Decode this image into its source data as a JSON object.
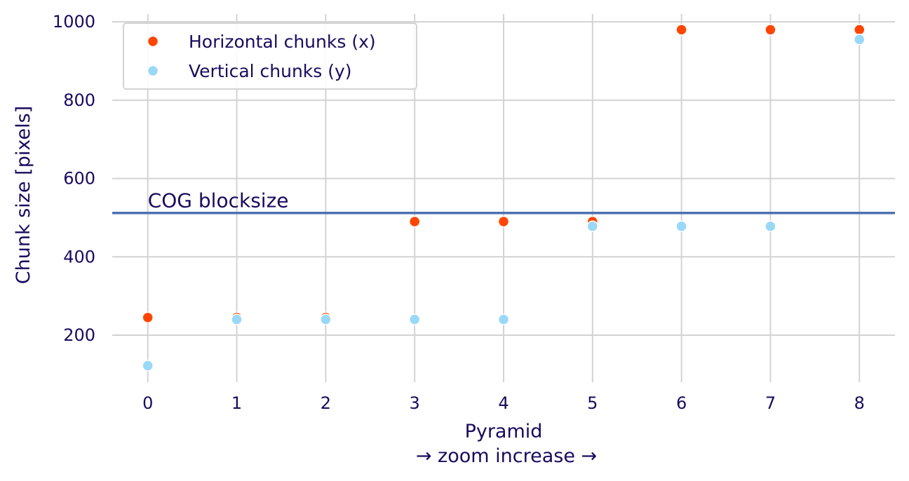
{
  "chart_data": {
    "type": "scatter",
    "x": [
      0,
      1,
      2,
      3,
      4,
      5,
      6,
      7,
      8
    ],
    "series": [
      {
        "name": "Horizontal chunks (x)",
        "color": "#ff4500",
        "values": [
          245,
          245,
          245,
          490,
          490,
          490,
          980,
          980,
          980
        ]
      },
      {
        "name": "Vertical chunks (y)",
        "color": "#9ad8f7",
        "values": [
          122,
          240,
          240,
          240,
          240,
          478,
          478,
          478,
          955
        ]
      }
    ],
    "reference_line": {
      "value": 512,
      "label": "COG blocksize",
      "color": "#4c72b0"
    },
    "xlabel": "Pyramid",
    "xlabel_line2": "→ zoom increase →",
    "ylabel": "Chunk size [pixels]",
    "xticks": [
      "0",
      "1",
      "2",
      "3",
      "4",
      "5",
      "6",
      "7",
      "8"
    ],
    "yticks": [
      200,
      400,
      600,
      800,
      1000
    ],
    "xlim": [
      -0.4,
      8.4
    ],
    "ylim": [
      80,
      1020
    ],
    "grid": true,
    "legend_position": "top-left"
  }
}
